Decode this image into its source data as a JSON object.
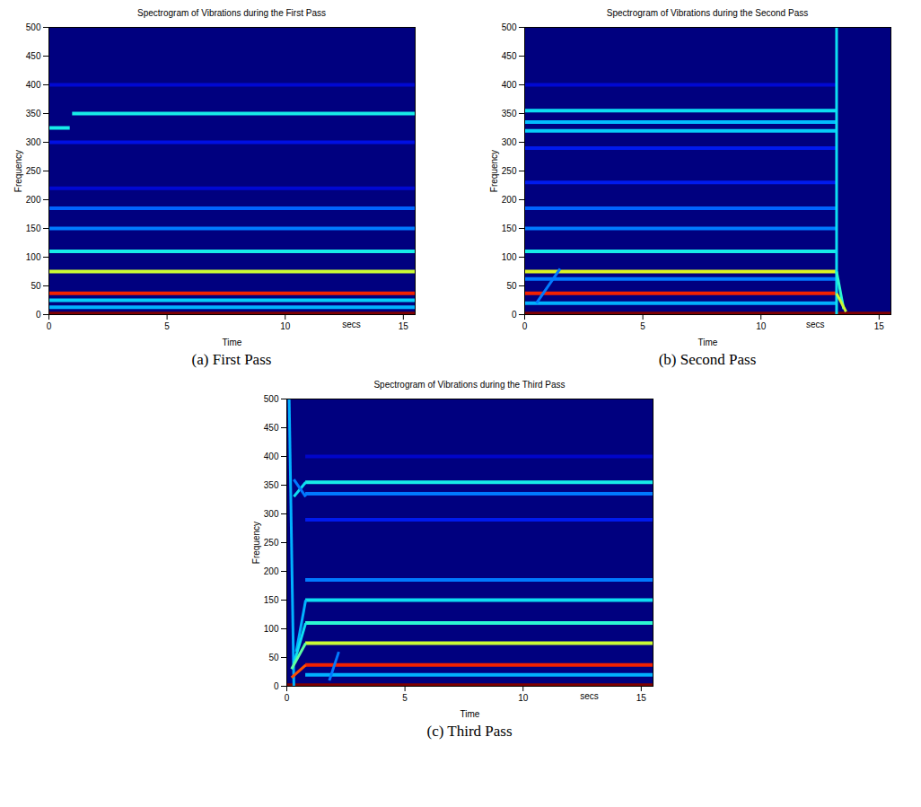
{
  "chart_data": [
    {
      "type": "heatmap",
      "title": "Spectrogram of Vibrations during the First Pass",
      "caption": "(a) First Pass",
      "xlabel": "Time",
      "ylabel": "Frequency",
      "xlim": [
        0,
        15.5
      ],
      "ylim": [
        0,
        500
      ],
      "xticks": [
        0,
        5,
        10,
        15
      ],
      "yticks": [
        0,
        50,
        100,
        150,
        200,
        250,
        300,
        350,
        400,
        450,
        500
      ],
      "annotations": [
        {
          "text": "secs",
          "x": 12.8
        }
      ],
      "background": 0.08,
      "bands": [
        {
          "frequency": 400,
          "start": 0,
          "end": 15.5,
          "level": 0.16
        },
        {
          "frequency": 300,
          "start": 0,
          "end": 15.5,
          "level": 0.18
        },
        {
          "frequency": 220,
          "start": 0,
          "end": 15.5,
          "level": 0.16
        },
        {
          "frequency": 185,
          "start": 0,
          "end": 15.5,
          "level": 0.28
        },
        {
          "frequency": 150,
          "start": 0,
          "end": 15.5,
          "level": 0.3
        },
        {
          "frequency": 13,
          "start": 0,
          "end": 15.5,
          "level": 0.35
        },
        {
          "frequency": 25,
          "start": 0,
          "end": 15.5,
          "level": 0.38
        },
        {
          "frequency": 110,
          "start": 0,
          "end": 15.5,
          "level": 0.42
        },
        {
          "frequency": 325,
          "start": 0,
          "end": 0.9,
          "level": 0.42
        },
        {
          "frequency": 350,
          "start": 1.0,
          "end": 15.5,
          "level": 0.42
        },
        {
          "frequency": 75,
          "start": 0,
          "end": 15.5,
          "level": 0.6
        },
        {
          "frequency": 37,
          "start": 0,
          "end": 15.5,
          "level": 0.85
        },
        {
          "frequency": 2,
          "start": 0,
          "end": 15.5,
          "level": 0.98
        }
      ],
      "sweeps": []
    },
    {
      "type": "heatmap",
      "title": "Spectrogram of Vibrations during the Second Pass",
      "caption": "(b) Second Pass",
      "xlabel": "Time",
      "ylabel": "Frequency",
      "xlim": [
        0,
        15.5
      ],
      "ylim": [
        0,
        500
      ],
      "xticks": [
        0,
        5,
        10,
        15
      ],
      "yticks": [
        0,
        50,
        100,
        150,
        200,
        250,
        300,
        350,
        400,
        450,
        500
      ],
      "annotations": [
        {
          "text": "secs",
          "x": 12.3
        }
      ],
      "background": 0.08,
      "bands": [
        {
          "frequency": 400,
          "start": 0,
          "end": 13.2,
          "level": 0.16
        },
        {
          "frequency": 290,
          "start": 0,
          "end": 13.2,
          "level": 0.2
        },
        {
          "frequency": 230,
          "start": 0,
          "end": 13.2,
          "level": 0.2
        },
        {
          "frequency": 185,
          "start": 0,
          "end": 13.2,
          "level": 0.28
        },
        {
          "frequency": 150,
          "start": 0,
          "end": 13.2,
          "level": 0.3
        },
        {
          "frequency": 62,
          "start": 0,
          "end": 13.2,
          "level": 0.3
        },
        {
          "frequency": 20,
          "start": 0,
          "end": 13.2,
          "level": 0.35
        },
        {
          "frequency": 320,
          "start": 0,
          "end": 13.2,
          "level": 0.38
        },
        {
          "frequency": 335,
          "start": 0,
          "end": 13.2,
          "level": 0.36
        },
        {
          "frequency": 355,
          "start": 0,
          "end": 13.2,
          "level": 0.4
        },
        {
          "frequency": 110,
          "start": 0,
          "end": 13.2,
          "level": 0.42
        },
        {
          "frequency": 75,
          "start": 0,
          "end": 13.2,
          "level": 0.62
        },
        {
          "frequency": 37,
          "start": 0,
          "end": 13.2,
          "level": 0.85
        },
        {
          "frequency": 2,
          "start": 0,
          "end": 15.5,
          "level": 0.98
        }
      ],
      "sweeps": [
        {
          "t1": 0.5,
          "f1": 20,
          "t2": 1.5,
          "f2": 80,
          "level": 0.3
        },
        {
          "t1": 13.2,
          "f1": 0,
          "t2": 13.2,
          "f2": 500,
          "level": 0.4
        },
        {
          "t1": 13.2,
          "f1": 75,
          "t2": 13.5,
          "f2": 10,
          "level": 0.45
        },
        {
          "t1": 13.2,
          "f1": 37,
          "t2": 13.6,
          "f2": 5,
          "level": 0.6
        }
      ]
    },
    {
      "type": "heatmap",
      "title": "Spectrogram of Vibrations during the Third Pass",
      "caption": "(c) Third Pass",
      "xlabel": "Time",
      "ylabel": "Frequency",
      "xlim": [
        0,
        15.5
      ],
      "ylim": [
        0,
        500
      ],
      "xticks": [
        0,
        5,
        10,
        15
      ],
      "yticks": [
        0,
        50,
        100,
        150,
        200,
        250,
        300,
        350,
        400,
        450,
        500
      ],
      "annotations": [
        {
          "text": "secs",
          "x": 12.8
        }
      ],
      "background": 0.08,
      "bands": [
        {
          "frequency": 400,
          "start": 0.8,
          "end": 15.5,
          "level": 0.15
        },
        {
          "frequency": 290,
          "start": 0.8,
          "end": 15.5,
          "level": 0.2
        },
        {
          "frequency": 185,
          "start": 0.8,
          "end": 15.5,
          "level": 0.3
        },
        {
          "frequency": 335,
          "start": 0.8,
          "end": 15.5,
          "level": 0.3
        },
        {
          "frequency": 20,
          "start": 0.8,
          "end": 15.5,
          "level": 0.35
        },
        {
          "frequency": 150,
          "start": 0.8,
          "end": 15.5,
          "level": 0.4
        },
        {
          "frequency": 355,
          "start": 0.8,
          "end": 15.5,
          "level": 0.42
        },
        {
          "frequency": 110,
          "start": 0.8,
          "end": 15.5,
          "level": 0.45
        },
        {
          "frequency": 75,
          "start": 0.8,
          "end": 15.5,
          "level": 0.6
        },
        {
          "frequency": 37,
          "start": 0.8,
          "end": 15.5,
          "level": 0.85
        },
        {
          "frequency": 2,
          "start": 0,
          "end": 15.5,
          "level": 0.98
        }
      ],
      "sweeps": [
        {
          "t1": 0.1,
          "f1": 500,
          "t2": 0.3,
          "f2": 0,
          "level": 0.35
        },
        {
          "t1": 0.3,
          "f1": 330,
          "t2": 0.8,
          "f2": 355,
          "level": 0.4
        },
        {
          "t1": 0.3,
          "f1": 360,
          "t2": 0.8,
          "f2": 330,
          "level": 0.3
        },
        {
          "t1": 0.4,
          "f1": 60,
          "t2": 0.8,
          "f2": 150,
          "level": 0.35
        },
        {
          "t1": 0.3,
          "f1": 40,
          "t2": 0.8,
          "f2": 110,
          "level": 0.4
        },
        {
          "t1": 0.2,
          "f1": 30,
          "t2": 0.8,
          "f2": 75,
          "level": 0.5
        },
        {
          "t1": 0.2,
          "f1": 15,
          "t2": 0.8,
          "f2": 37,
          "level": 0.8
        },
        {
          "t1": 1.8,
          "f1": 10,
          "t2": 2.2,
          "f2": 60,
          "level": 0.3
        }
      ]
    }
  ]
}
